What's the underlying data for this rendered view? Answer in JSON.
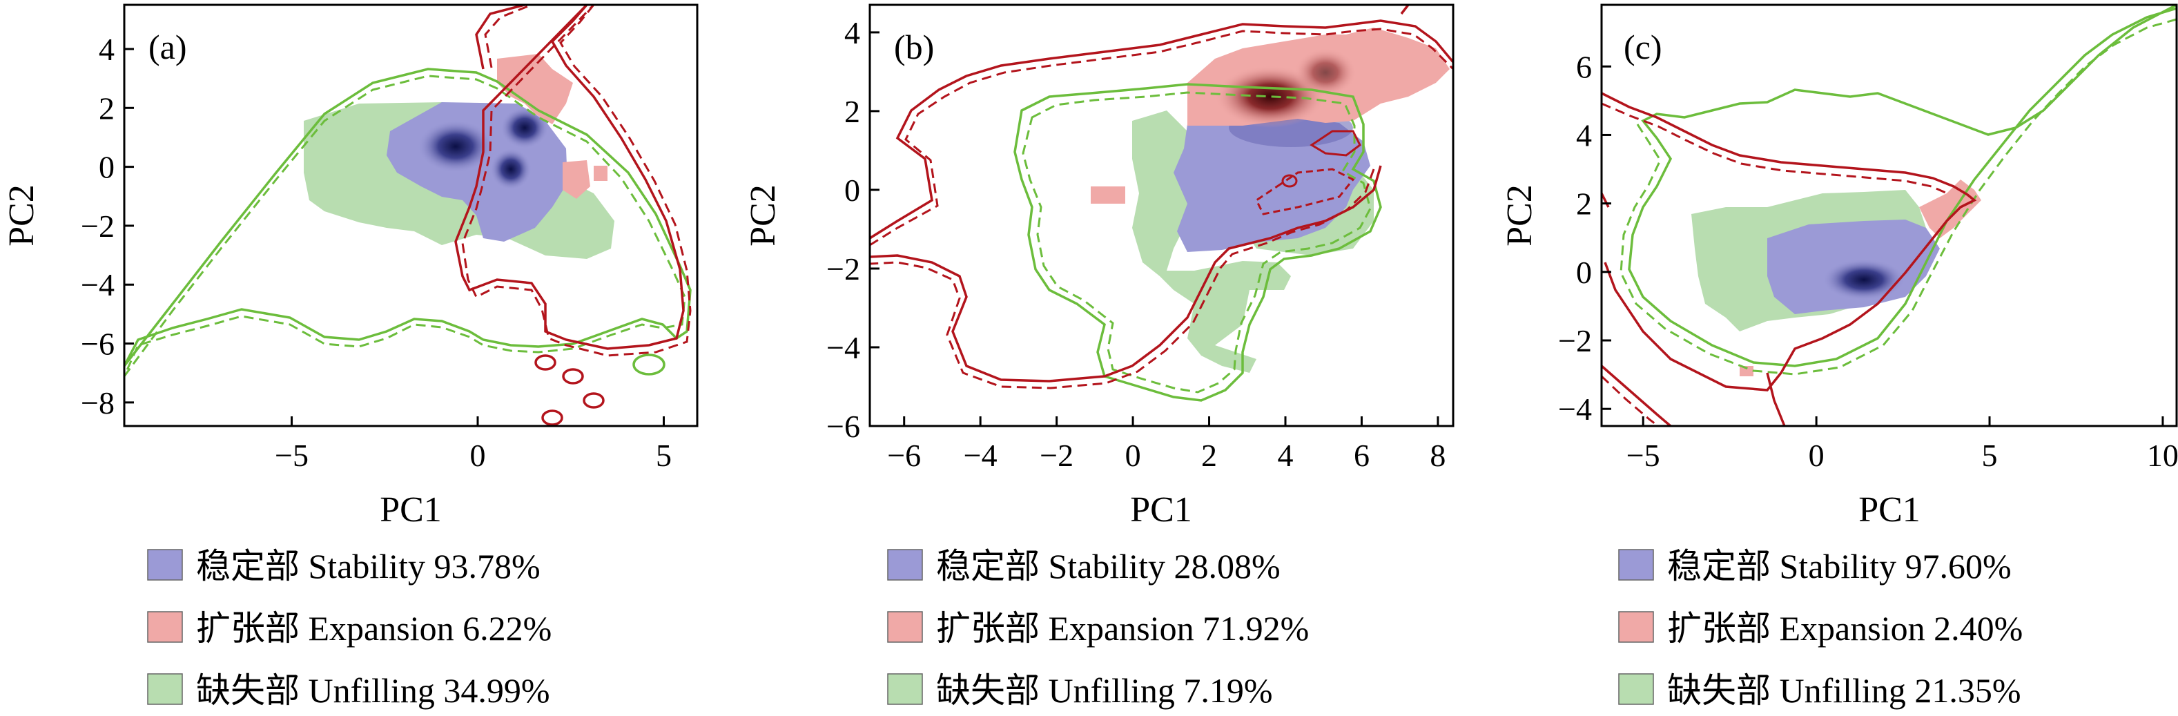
{
  "colors": {
    "stability": "#9b9ad6",
    "stability_dark": "#0b0f45",
    "expansion": "#f0a9a7",
    "expansion_dark": "#3a0608",
    "unfilling": "#b8ddb0",
    "contour_red": "#b3141c",
    "contour_green": "#6cbd3c"
  },
  "chart_data": [
    {
      "type": "heatmap",
      "panel_label": "(a)",
      "xlabel": "PC1",
      "ylabel": "PC2",
      "xlim": [
        -9.5,
        5.9
      ],
      "ylim": [
        -8.8,
        5.5
      ],
      "xticks": [
        -5,
        0,
        5
      ],
      "yticks": [
        -8,
        -6,
        -4,
        -2,
        0,
        2,
        4
      ],
      "series": [
        {
          "key": "stability",
          "label": "稳定部 Stability 93.78%"
        },
        {
          "key": "expansion",
          "label": "扩张部 Expansion 6.22%"
        },
        {
          "key": "unfilling",
          "label": "缺失部 Unfilling 34.99%"
        }
      ]
    },
    {
      "type": "heatmap",
      "panel_label": "(b)",
      "xlabel": "PC1",
      "ylabel": "PC2",
      "xlim": [
        -6.9,
        8.4
      ],
      "ylim": [
        -6.0,
        4.7
      ],
      "xticks": [
        -6,
        -4,
        -2,
        0,
        2,
        4,
        6,
        8
      ],
      "yticks": [
        -6,
        -4,
        -2,
        0,
        2,
        4
      ],
      "series": [
        {
          "key": "stability",
          "label": "稳定部 Stability 28.08%"
        },
        {
          "key": "expansion",
          "label": "扩张部 Expansion 71.92%"
        },
        {
          "key": "unfilling",
          "label": "缺失部 Unfilling 7.19%"
        }
      ]
    },
    {
      "type": "heatmap",
      "panel_label": "(c)",
      "xlabel": "PC1",
      "ylabel": "PC2",
      "xlim": [
        -6.2,
        10.4
      ],
      "ylim": [
        -4.5,
        7.8
      ],
      "xticks": [
        -5,
        0,
        5,
        10
      ],
      "yticks": [
        -4,
        -2,
        0,
        2,
        4,
        6
      ],
      "series": [
        {
          "key": "stability",
          "label": "稳定部 Stability 97.60%"
        },
        {
          "key": "expansion",
          "label": "扩张部 Expansion 2.40%"
        },
        {
          "key": "unfilling",
          "label": "缺失部 Unfilling 21.35%"
        }
      ]
    }
  ]
}
